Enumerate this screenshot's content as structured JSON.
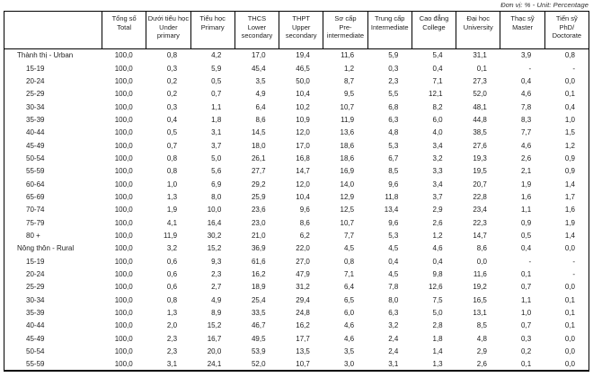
{
  "unit_note": "Đơn vị: % - Unit: Percentage",
  "table": {
    "corner_label": "",
    "columns": [
      {
        "vi": "Tổng số",
        "en": "Total",
        "lines": [
          "Tổng số",
          "Total"
        ]
      },
      {
        "vi": "Dưới tiểu học",
        "en": "Under primary",
        "lines": [
          "Dưới tiểu học",
          "Under",
          "primary"
        ]
      },
      {
        "vi": "Tiểu học",
        "en": "Primary",
        "lines": [
          "Tiểu học",
          "Primary"
        ]
      },
      {
        "vi": "THCS",
        "en": "Lower secondary",
        "lines": [
          "THCS",
          "Lower",
          "secondary"
        ]
      },
      {
        "vi": "THPT",
        "en": "Upper secondary",
        "lines": [
          "THPT",
          "Upper",
          "secondary"
        ]
      },
      {
        "vi": "Sơ cấp",
        "en": "Pre-intermediate",
        "lines": [
          "Sơ cấp",
          "Pre-",
          "intermediate"
        ]
      },
      {
        "vi": "Trung cấp",
        "en": "Intermediate",
        "lines": [
          "Trung cấp",
          "Intermediate"
        ]
      },
      {
        "vi": "Cao đẳng",
        "en": "College",
        "lines": [
          "Cao đẳng",
          "College"
        ]
      },
      {
        "vi": "Đại học",
        "en": "University",
        "lines": [
          "Đại học",
          "University"
        ]
      },
      {
        "vi": "Thạc sỹ",
        "en": "Master",
        "lines": [
          "Thạc sỹ",
          "Master"
        ]
      },
      {
        "vi": "Tiến sỹ",
        "en": "PhD/ Doctorate",
        "lines": [
          "Tiến sỹ",
          "PhD/",
          "Doctorate"
        ]
      }
    ],
    "rows": [
      {
        "label": "Thành thị - Urban",
        "group": true,
        "values": [
          "100,0",
          "0,8",
          "4,2",
          "17,0",
          "19,4",
          "11,6",
          "5,9",
          "5,4",
          "31,1",
          "3,9",
          "0,8"
        ]
      },
      {
        "label": "15-19",
        "group": false,
        "values": [
          "100,0",
          "0,3",
          "5,9",
          "45,4",
          "46,5",
          "1,2",
          "0,3",
          "0,4",
          "0,1",
          "-",
          "-"
        ]
      },
      {
        "label": "20-24",
        "group": false,
        "values": [
          "100,0",
          "0,2",
          "0,5",
          "3,5",
          "50,0",
          "8,7",
          "2,3",
          "7,1",
          "27,3",
          "0,4",
          "0,0"
        ]
      },
      {
        "label": "25-29",
        "group": false,
        "values": [
          "100,0",
          "0,2",
          "0,7",
          "4,9",
          "10,4",
          "9,5",
          "5,5",
          "12,1",
          "52,0",
          "4,6",
          "0,1"
        ]
      },
      {
        "label": "30-34",
        "group": false,
        "values": [
          "100,0",
          "0,3",
          "1,1",
          "6,4",
          "10,2",
          "10,7",
          "6,8",
          "8,2",
          "48,1",
          "7,8",
          "0,4"
        ]
      },
      {
        "label": "35-39",
        "group": false,
        "values": [
          "100,0",
          "0,4",
          "1,8",
          "8,6",
          "10,9",
          "11,9",
          "6,3",
          "6,0",
          "44,8",
          "8,3",
          "1,0"
        ]
      },
      {
        "label": "40-44",
        "group": false,
        "values": [
          "100,0",
          "0,5",
          "3,1",
          "14,5",
          "12,0",
          "13,6",
          "4,8",
          "4,0",
          "38,5",
          "7,7",
          "1,5"
        ]
      },
      {
        "label": "45-49",
        "group": false,
        "values": [
          "100,0",
          "0,7",
          "3,7",
          "18,0",
          "17,0",
          "18,6",
          "5,3",
          "3,4",
          "27,6",
          "4,6",
          "1,2"
        ]
      },
      {
        "label": "50-54",
        "group": false,
        "values": [
          "100,0",
          "0,8",
          "5,0",
          "26,1",
          "16,8",
          "18,6",
          "6,7",
          "3,2",
          "19,3",
          "2,6",
          "0,9"
        ]
      },
      {
        "label": "55-59",
        "group": false,
        "values": [
          "100,0",
          "0,8",
          "5,6",
          "27,7",
          "14,7",
          "16,9",
          "8,5",
          "3,3",
          "19,5",
          "2,1",
          "0,9"
        ]
      },
      {
        "label": "60-64",
        "group": false,
        "values": [
          "100,0",
          "1,0",
          "6,9",
          "29,2",
          "12,0",
          "14,0",
          "9,6",
          "3,4",
          "20,7",
          "1,9",
          "1,4"
        ]
      },
      {
        "label": "65-69",
        "group": false,
        "values": [
          "100,0",
          "1,3",
          "8,0",
          "25,9",
          "10,4",
          "12,9",
          "11,8",
          "3,7",
          "22,8",
          "1,6",
          "1,7"
        ]
      },
      {
        "label": "70-74",
        "group": false,
        "values": [
          "100,0",
          "1,9",
          "10,0",
          "23,6",
          "9,6",
          "12,5",
          "13,4",
          "2,9",
          "23,4",
          "1,1",
          "1,6"
        ]
      },
      {
        "label": "75-79",
        "group": false,
        "values": [
          "100,0",
          "4,1",
          "16,4",
          "23,0",
          "8,6",
          "10,7",
          "9,6",
          "2,6",
          "22,3",
          "0,9",
          "1,9"
        ]
      },
      {
        "label": "80 +",
        "group": false,
        "values": [
          "100,0",
          "11,9",
          "30,2",
          "21,0",
          "6,2",
          "7,7",
          "5,3",
          "1,2",
          "14,7",
          "0,5",
          "1,4"
        ]
      },
      {
        "label": "Nông thôn - Rural",
        "group": true,
        "values": [
          "100,0",
          "3,2",
          "15,2",
          "36,9",
          "22,0",
          "4,5",
          "4,5",
          "4,6",
          "8,6",
          "0,4",
          "0,0"
        ]
      },
      {
        "label": "15-19",
        "group": false,
        "values": [
          "100,0",
          "0,6",
          "9,3",
          "61,6",
          "27,0",
          "0,8",
          "0,4",
          "0,4",
          "0,0",
          "-",
          "-"
        ]
      },
      {
        "label": "20-24",
        "group": false,
        "values": [
          "100,0",
          "0,6",
          "2,3",
          "16,2",
          "47,9",
          "7,1",
          "4,5",
          "9,8",
          "11,6",
          "0,1",
          "-"
        ]
      },
      {
        "label": "25-29",
        "group": false,
        "values": [
          "100,0",
          "0,6",
          "2,7",
          "18,9",
          "31,2",
          "6,4",
          "7,8",
          "12,6",
          "19,2",
          "0,7",
          "0,0"
        ]
      },
      {
        "label": "30-34",
        "group": false,
        "values": [
          "100,0",
          "0,8",
          "4,9",
          "25,4",
          "29,4",
          "6,5",
          "8,0",
          "7,5",
          "16,5",
          "1,1",
          "0,1"
        ]
      },
      {
        "label": "35-39",
        "group": false,
        "values": [
          "100,0",
          "1,3",
          "8,9",
          "33,5",
          "24,8",
          "6,0",
          "6,3",
          "5,0",
          "13,1",
          "1,0",
          "0,1"
        ]
      },
      {
        "label": "40-44",
        "group": false,
        "values": [
          "100,0",
          "2,0",
          "15,2",
          "46,7",
          "16,2",
          "4,6",
          "3,2",
          "2,8",
          "8,5",
          "0,7",
          "0,1"
        ]
      },
      {
        "label": "45-49",
        "group": false,
        "values": [
          "100,0",
          "2,3",
          "16,7",
          "49,5",
          "17,7",
          "4,6",
          "2,4",
          "1,8",
          "4,8",
          "0,3",
          "0,0"
        ]
      },
      {
        "label": "50-54",
        "group": false,
        "values": [
          "100,0",
          "2,3",
          "20,0",
          "53,9",
          "13,5",
          "3,5",
          "2,4",
          "1,4",
          "2,9",
          "0,2",
          "0,0"
        ]
      },
      {
        "label": "55-59",
        "group": false,
        "values": [
          "100,0",
          "3,1",
          "24,1",
          "52,0",
          "10,7",
          "3,0",
          "3,1",
          "1,3",
          "2,6",
          "0,1",
          "0,0"
        ]
      }
    ]
  }
}
